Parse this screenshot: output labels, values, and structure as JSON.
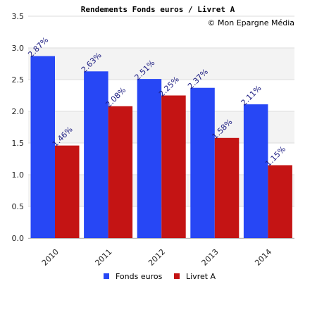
{
  "chart_data": {
    "type": "bar",
    "title": "Rendements Fonds euros / Livret A",
    "credit": "© Mon Epargne Média",
    "categories": [
      "2010",
      "2011",
      "2012",
      "2013",
      "2014"
    ],
    "series": [
      {
        "name": "Fonds euros",
        "color": "#2747f5",
        "values": [
          2.87,
          2.63,
          2.51,
          2.37,
          2.11
        ],
        "labels": [
          "2.87%",
          "2.63%",
          "2.51%",
          "2.37%",
          "2.11%"
        ]
      },
      {
        "name": "Livret A",
        "color": "#c41414",
        "values": [
          1.46,
          2.08,
          2.25,
          1.58,
          1.15
        ],
        "labels": [
          "1.46%",
          "2.08%",
          "2.25%",
          "1.58%",
          "1.15%"
        ]
      }
    ],
    "ylim": [
      0,
      3.5
    ],
    "yticks": [
      "0.0",
      "0.5",
      "1.0",
      "1.5",
      "2.0",
      "2.5",
      "3.0",
      "3.5"
    ],
    "xlabel": "",
    "ylabel": "",
    "grid": true,
    "legend_position": "bottom"
  }
}
